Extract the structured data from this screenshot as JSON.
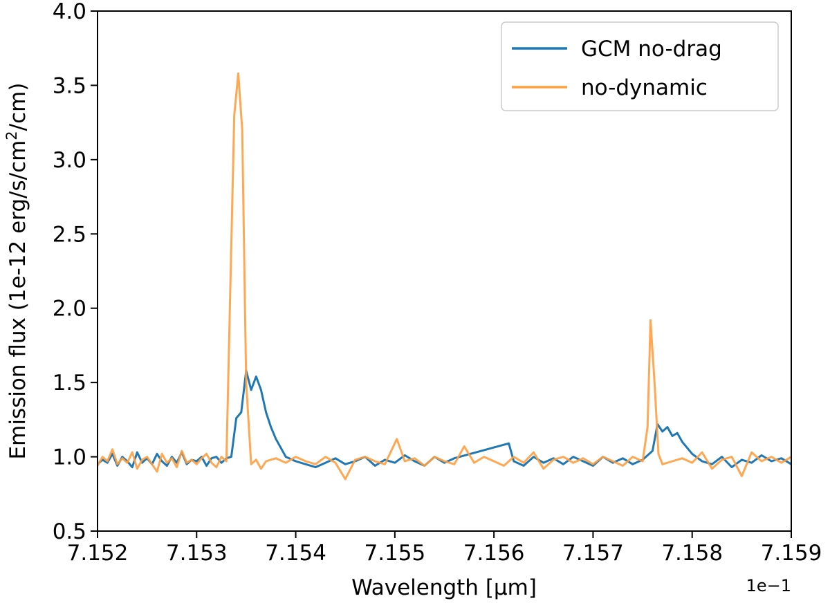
{
  "chart_data": {
    "type": "line",
    "xlabel": "Wavelength [μm]",
    "ylabel_prefix": "Emission flux (1e-12 erg/s/cm",
    "ylabel_sup": "2",
    "ylabel_suffix": "/cm)",
    "x_offset_label": "1e−1",
    "xlim": [
      7.152,
      7.159
    ],
    "ylim": [
      0.5,
      4.0
    ],
    "x_ticks": [
      "7.152",
      "7.153",
      "7.154",
      "7.155",
      "7.156",
      "7.157",
      "7.158",
      "7.159"
    ],
    "y_ticks": [
      "0.5",
      "1.0",
      "1.5",
      "2.0",
      "2.5",
      "3.0",
      "3.5",
      "4.0"
    ],
    "legend_position": "top-right",
    "grid": false,
    "series": [
      {
        "name": "GCM no-drag",
        "color": "#1f77b4",
        "x": [
          7.152,
          7.15205,
          7.1521,
          7.15215,
          7.1522,
          7.15225,
          7.1523,
          7.15235,
          7.1524,
          7.15245,
          7.1525,
          7.15255,
          7.1526,
          7.15265,
          7.1527,
          7.15275,
          7.1528,
          7.15285,
          7.1529,
          7.15295,
          7.153,
          7.15305,
          7.1531,
          7.15315,
          7.1532,
          7.15325,
          7.1533,
          7.15335,
          7.1534,
          7.15345,
          7.1535,
          7.15355,
          7.1536,
          7.15365,
          7.1537,
          7.15375,
          7.1538,
          7.1539,
          7.154,
          7.1541,
          7.1542,
          7.1543,
          7.1544,
          7.1545,
          7.1546,
          7.1547,
          7.1548,
          7.1549,
          7.155,
          7.1551,
          7.1552,
          7.1553,
          7.1554,
          7.1555,
          7.1556,
          7.15615,
          7.1562,
          7.1563,
          7.1564,
          7.1565,
          7.1566,
          7.1567,
          7.1568,
          7.1569,
          7.157,
          7.1571,
          7.1572,
          7.1573,
          7.1574,
          7.1575,
          7.1576,
          7.15765,
          7.1577,
          7.15775,
          7.1578,
          7.15785,
          7.1579,
          7.158,
          7.1581,
          7.1582,
          7.1583,
          7.1584,
          7.1585,
          7.1586,
          7.1587,
          7.1588,
          7.1589,
          7.159
        ],
        "y": [
          0.95,
          0.98,
          0.96,
          1.02,
          0.94,
          1.0,
          0.97,
          0.93,
          1.03,
          0.96,
          0.99,
          0.95,
          1.02,
          0.97,
          0.94,
          1.0,
          0.96,
          1.03,
          0.95,
          0.98,
          0.97,
          1.0,
          0.94,
          0.99,
          1.0,
          0.96,
          0.99,
          1.0,
          1.26,
          1.3,
          1.58,
          1.45,
          1.54,
          1.45,
          1.3,
          1.2,
          1.12,
          1.0,
          0.97,
          0.95,
          0.93,
          0.96,
          0.99,
          0.95,
          0.97,
          1.0,
          0.94,
          0.98,
          0.96,
          1.01,
          0.97,
          0.94,
          1.0,
          0.96,
          0.99,
          1.09,
          0.97,
          0.94,
          1.0,
          0.96,
          0.99,
          0.95,
          1.0,
          0.97,
          0.94,
          1.0,
          0.96,
          0.99,
          0.95,
          0.98,
          1.04,
          1.22,
          1.17,
          1.2,
          1.14,
          1.16,
          1.1,
          1.02,
          0.97,
          0.95,
          1.0,
          0.93,
          0.98,
          0.96,
          1.01,
          0.97,
          0.99,
          0.95
        ]
      },
      {
        "name": "no-dynamic",
        "color": "#ff9f40",
        "x": [
          7.152,
          7.15205,
          7.1521,
          7.15215,
          7.1522,
          7.15225,
          7.1523,
          7.15235,
          7.1524,
          7.15245,
          7.1525,
          7.15255,
          7.1526,
          7.15265,
          7.1527,
          7.15275,
          7.1528,
          7.15285,
          7.1529,
          7.15295,
          7.153,
          7.15305,
          7.1531,
          7.15315,
          7.1532,
          7.15325,
          7.1533,
          7.15338,
          7.15342,
          7.15346,
          7.1535,
          7.15355,
          7.1536,
          7.15365,
          7.1537,
          7.1538,
          7.1539,
          7.154,
          7.1541,
          7.1542,
          7.1543,
          7.1544,
          7.1545,
          7.1546,
          7.1547,
          7.1548,
          7.1549,
          7.15502,
          7.1551,
          7.1552,
          7.1553,
          7.1554,
          7.1555,
          7.1556,
          7.1557,
          7.1558,
          7.1559,
          7.156,
          7.1561,
          7.1562,
          7.1563,
          7.1564,
          7.1565,
          7.1566,
          7.1567,
          7.1568,
          7.1569,
          7.157,
          7.1571,
          7.1572,
          7.1573,
          7.1574,
          7.1575,
          7.15755,
          7.15758,
          7.15762,
          7.15766,
          7.1577,
          7.1578,
          7.1579,
          7.158,
          7.1581,
          7.1582,
          7.1583,
          7.1584,
          7.1585,
          7.1586,
          7.1587,
          7.1588,
          7.1589,
          7.159
        ],
        "y": [
          0.94,
          1.0,
          0.97,
          1.05,
          0.95,
          0.99,
          0.96,
          1.03,
          0.92,
          0.98,
          1.0,
          0.95,
          0.9,
          1.02,
          0.96,
          0.99,
          0.93,
          1.04,
          0.96,
          0.98,
          0.95,
          0.99,
          1.02,
          0.96,
          0.93,
          1.0,
          0.97,
          3.3,
          3.58,
          3.2,
          1.5,
          0.95,
          0.98,
          0.92,
          0.97,
          0.99,
          0.96,
          1.0,
          0.97,
          0.95,
          1.0,
          0.96,
          0.85,
          0.98,
          1.0,
          0.97,
          0.95,
          1.12,
          0.97,
          0.99,
          0.94,
          1.0,
          0.97,
          0.95,
          1.07,
          0.96,
          1.0,
          0.97,
          0.94,
          1.0,
          0.96,
          1.03,
          0.92,
          0.98,
          1.0,
          0.96,
          0.99,
          0.95,
          1.0,
          0.97,
          0.94,
          1.0,
          0.97,
          1.2,
          1.92,
          1.5,
          1.02,
          0.95,
          0.97,
          0.99,
          0.96,
          1.03,
          0.92,
          0.98,
          1.0,
          0.87,
          1.03,
          0.97,
          1.0,
          0.96,
          1.0
        ]
      }
    ]
  }
}
